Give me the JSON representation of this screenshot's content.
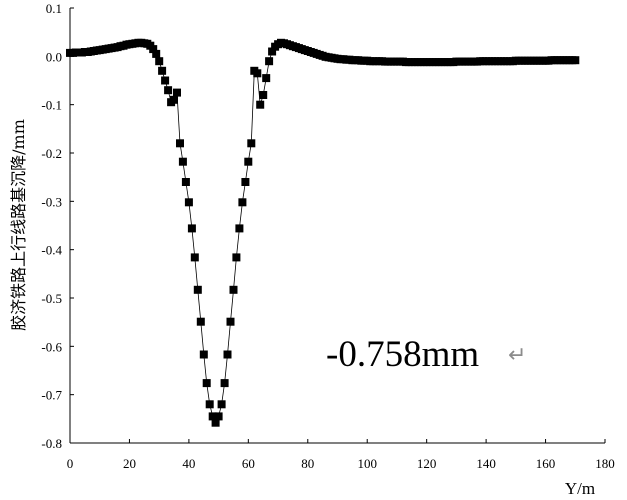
{
  "chart_data": {
    "type": "scatter",
    "xlabel": "Y/m",
    "ylabel": "胶济铁路上行线路基沉降/mm",
    "xlim": [
      0,
      180
    ],
    "ylim": [
      -0.8,
      0.1
    ],
    "x_ticks": [
      "0",
      "20",
      "40",
      "60",
      "80",
      "100",
      "120",
      "140",
      "160",
      "180"
    ],
    "y_ticks": [
      "0.1",
      "0.0",
      "-0.1",
      "-0.2",
      "-0.3",
      "-0.4",
      "-0.5",
      "-0.6",
      "-0.7",
      "-0.8"
    ],
    "annotation": "-0.758mm",
    "annotation_mark": "↵",
    "marker": "square",
    "color": "#000000",
    "grid": false,
    "series": [
      {
        "x": [
          0,
          1,
          2,
          3,
          4,
          5,
          6,
          7,
          8,
          9,
          10,
          11,
          12,
          13,
          14,
          15,
          16,
          17,
          18,
          19,
          20,
          21,
          22,
          23,
          24,
          25,
          26,
          27,
          28,
          29,
          30,
          31,
          32,
          33,
          34,
          35,
          36,
          37,
          38,
          39,
          40,
          41,
          42,
          43,
          44,
          45,
          46,
          47,
          48,
          49,
          50,
          51,
          52,
          53,
          54,
          55,
          56,
          57,
          58,
          59,
          60,
          61,
          62,
          63,
          64,
          65,
          66,
          67,
          68,
          69,
          70,
          71,
          72,
          73,
          74,
          75,
          76,
          77,
          78,
          79,
          80,
          81,
          82,
          83,
          84,
          85,
          86,
          87,
          88,
          89,
          90,
          91,
          92,
          93,
          94,
          95,
          96,
          97,
          98,
          99,
          100,
          101,
          102,
          103,
          104,
          105,
          106,
          107,
          108,
          109,
          110,
          111,
          112,
          113,
          114,
          115,
          116,
          117,
          118,
          119,
          120,
          121,
          122,
          123,
          124,
          125,
          126,
          127,
          128,
          129,
          130,
          131,
          132,
          133,
          134,
          135,
          136,
          137,
          138,
          139,
          140,
          141,
          142,
          143,
          144,
          145,
          146,
          147,
          148,
          149,
          150,
          151,
          152,
          153,
          154,
          155,
          156,
          157,
          158,
          159,
          160,
          161,
          162,
          163,
          164,
          165,
          166,
          167,
          168,
          169,
          170
        ],
        "y": [
          0.007,
          0.007,
          0.008,
          0.008,
          0.008,
          0.009,
          0.009,
          0.01,
          0.011,
          0.012,
          0.013,
          0.014,
          0.015,
          0.016,
          0.017,
          0.018,
          0.019,
          0.021,
          0.022,
          0.024,
          0.025,
          0.026,
          0.027,
          0.028,
          0.028,
          0.027,
          0.026,
          0.022,
          0.015,
          0.005,
          -0.01,
          -0.03,
          -0.05,
          -0.07,
          -0.095,
          -0.09,
          -0.075,
          -0.18,
          -0.218,
          -0.26,
          -0.302,
          -0.356,
          -0.416,
          -0.483,
          -0.549,
          -0.617,
          -0.676,
          -0.72,
          -0.745,
          -0.758,
          -0.745,
          -0.72,
          -0.676,
          -0.617,
          -0.549,
          -0.483,
          -0.416,
          -0.356,
          -0.302,
          -0.26,
          -0.218,
          -0.18,
          -0.03,
          -0.035,
          -0.1,
          -0.08,
          -0.045,
          -0.01,
          0.01,
          0.02,
          0.025,
          0.028,
          0.027,
          0.025,
          0.023,
          0.021,
          0.019,
          0.017,
          0.015,
          0.013,
          0.011,
          0.009,
          0.007,
          0.005,
          0.003,
          0.001,
          -0.001,
          -0.002,
          -0.003,
          -0.004,
          -0.005,
          -0.006,
          -0.006,
          -0.007,
          -0.007,
          -0.008,
          -0.008,
          -0.008,
          -0.009,
          -0.009,
          -0.009,
          -0.01,
          -0.01,
          -0.01,
          -0.01,
          -0.01,
          -0.011,
          -0.011,
          -0.011,
          -0.011,
          -0.011,
          -0.011,
          -0.011,
          -0.012,
          -0.012,
          -0.012,
          -0.012,
          -0.012,
          -0.012,
          -0.012,
          -0.012,
          -0.012,
          -0.012,
          -0.012,
          -0.012,
          -0.012,
          -0.012,
          -0.012,
          -0.012,
          -0.012,
          -0.011,
          -0.011,
          -0.011,
          -0.011,
          -0.011,
          -0.011,
          -0.011,
          -0.011,
          -0.01,
          -0.01,
          -0.01,
          -0.01,
          -0.01,
          -0.01,
          -0.01,
          -0.01,
          -0.01,
          -0.01,
          -0.01,
          -0.01,
          -0.009,
          -0.009,
          -0.009,
          -0.009,
          -0.009,
          -0.009,
          -0.009,
          -0.009,
          -0.009,
          -0.009,
          -0.009,
          -0.009,
          -0.008,
          -0.008,
          -0.008,
          -0.008,
          -0.008,
          -0.008,
          -0.008,
          -0.008,
          -0.008
        ]
      }
    ]
  }
}
